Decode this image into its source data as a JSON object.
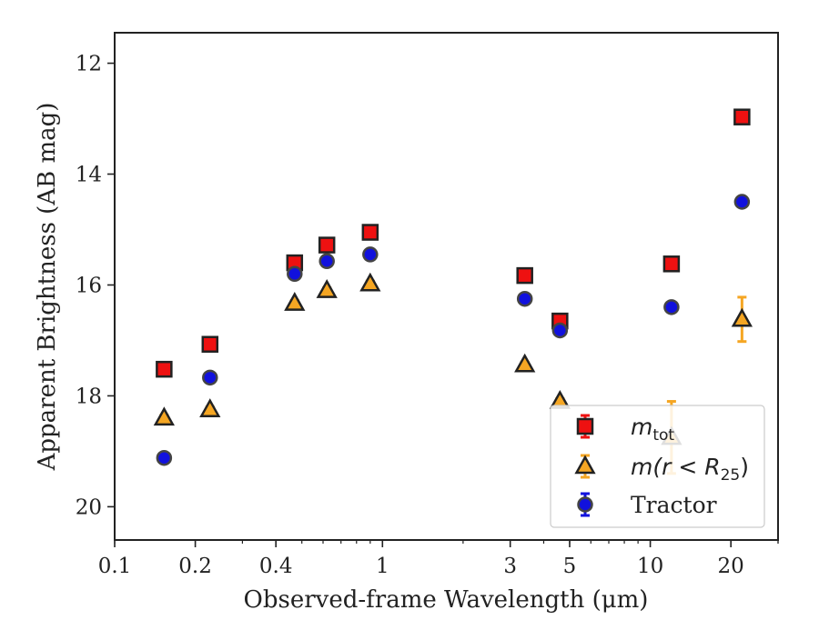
{
  "chart_data": {
    "type": "scatter",
    "title": "",
    "xlabel": "Observed-frame Wavelength (μm)",
    "ylabel": "Apparent Brightness (AB mag)",
    "xscale": "log",
    "yaxis_inverted": true,
    "xlim": [
      0.1,
      30
    ],
    "ylim": [
      20.6,
      11.45
    ],
    "x_ticks": [
      {
        "value": 0.1,
        "label": "0.1"
      },
      {
        "value": 0.2,
        "label": "0.2"
      },
      {
        "value": 0.4,
        "label": "0.4"
      },
      {
        "value": 1,
        "label": "1"
      },
      {
        "value": 3,
        "label": "3"
      },
      {
        "value": 5,
        "label": "5"
      },
      {
        "value": 10,
        "label": "10"
      },
      {
        "value": 20,
        "label": "20"
      }
    ],
    "y_ticks": [
      {
        "value": 12,
        "label": "12"
      },
      {
        "value": 14,
        "label": "14"
      },
      {
        "value": 16,
        "label": "16"
      },
      {
        "value": 18,
        "label": "18"
      },
      {
        "value": 20,
        "label": "20"
      }
    ],
    "grid": false,
    "legend": {
      "position": "lower-right",
      "entries": [
        {
          "series": "m_tot",
          "base": "m",
          "sub": "tot",
          "sup": "",
          "tail": ""
        },
        {
          "series": "m_r25",
          "base": "m",
          "pre": "(r < R",
          "sub": "25",
          "tail": ")"
        },
        {
          "series": "tractor",
          "label": "Tractor"
        }
      ]
    },
    "series": [
      {
        "key": "m_tot",
        "marker": "square",
        "color": "#ee1111",
        "edge": "#222222",
        "errcolor": "#ee1111",
        "points": [
          {
            "x": 0.153,
            "y": 17.52,
            "err": 0.05
          },
          {
            "x": 0.227,
            "y": 17.07,
            "err": 0.05
          },
          {
            "x": 0.47,
            "y": 15.6,
            "err": 0.05
          },
          {
            "x": 0.62,
            "y": 15.28,
            "err": 0.05
          },
          {
            "x": 0.9,
            "y": 15.05,
            "err": 0.05
          },
          {
            "x": 3.4,
            "y": 15.83,
            "err": 0.05
          },
          {
            "x": 4.6,
            "y": 16.65,
            "err": 0.05
          },
          {
            "x": 12.0,
            "y": 15.62,
            "err": 0.05
          },
          {
            "x": 22.0,
            "y": 12.97,
            "err": 0.05
          }
        ]
      },
      {
        "key": "m_r25",
        "marker": "triangle",
        "color": "#f5a623",
        "edge": "#222222",
        "errcolor": "#f5a623",
        "points": [
          {
            "x": 0.153,
            "y": 18.4,
            "err": 0.05
          },
          {
            "x": 0.227,
            "y": 18.25,
            "err": 0.05
          },
          {
            "x": 0.47,
            "y": 16.33,
            "err": 0.05
          },
          {
            "x": 0.62,
            "y": 16.1,
            "err": 0.05
          },
          {
            "x": 0.9,
            "y": 15.98,
            "err": 0.05
          },
          {
            "x": 3.4,
            "y": 17.44,
            "err": 0.05
          },
          {
            "x": 4.6,
            "y": 18.1,
            "err": 0.05
          },
          {
            "x": 12.0,
            "y": 18.75,
            "err": 0.65
          },
          {
            "x": 22.0,
            "y": 16.62,
            "err": 0.4
          }
        ]
      },
      {
        "key": "tractor",
        "marker": "circle",
        "color": "#1111dd",
        "edge": "#444444",
        "errcolor": "#1111dd",
        "points": [
          {
            "x": 0.153,
            "y": 19.12,
            "err": 0.08
          },
          {
            "x": 0.227,
            "y": 17.67,
            "err": 0.08
          },
          {
            "x": 0.47,
            "y": 15.8,
            "err": 0.06
          },
          {
            "x": 0.62,
            "y": 15.57,
            "err": 0.06
          },
          {
            "x": 0.9,
            "y": 15.45,
            "err": 0.06
          },
          {
            "x": 3.4,
            "y": 16.25,
            "err": 0.06
          },
          {
            "x": 4.6,
            "y": 16.82,
            "err": 0.06
          },
          {
            "x": 12.0,
            "y": 16.4,
            "err": 0.06
          },
          {
            "x": 22.0,
            "y": 14.5,
            "err": 0.06
          }
        ]
      }
    ]
  }
}
